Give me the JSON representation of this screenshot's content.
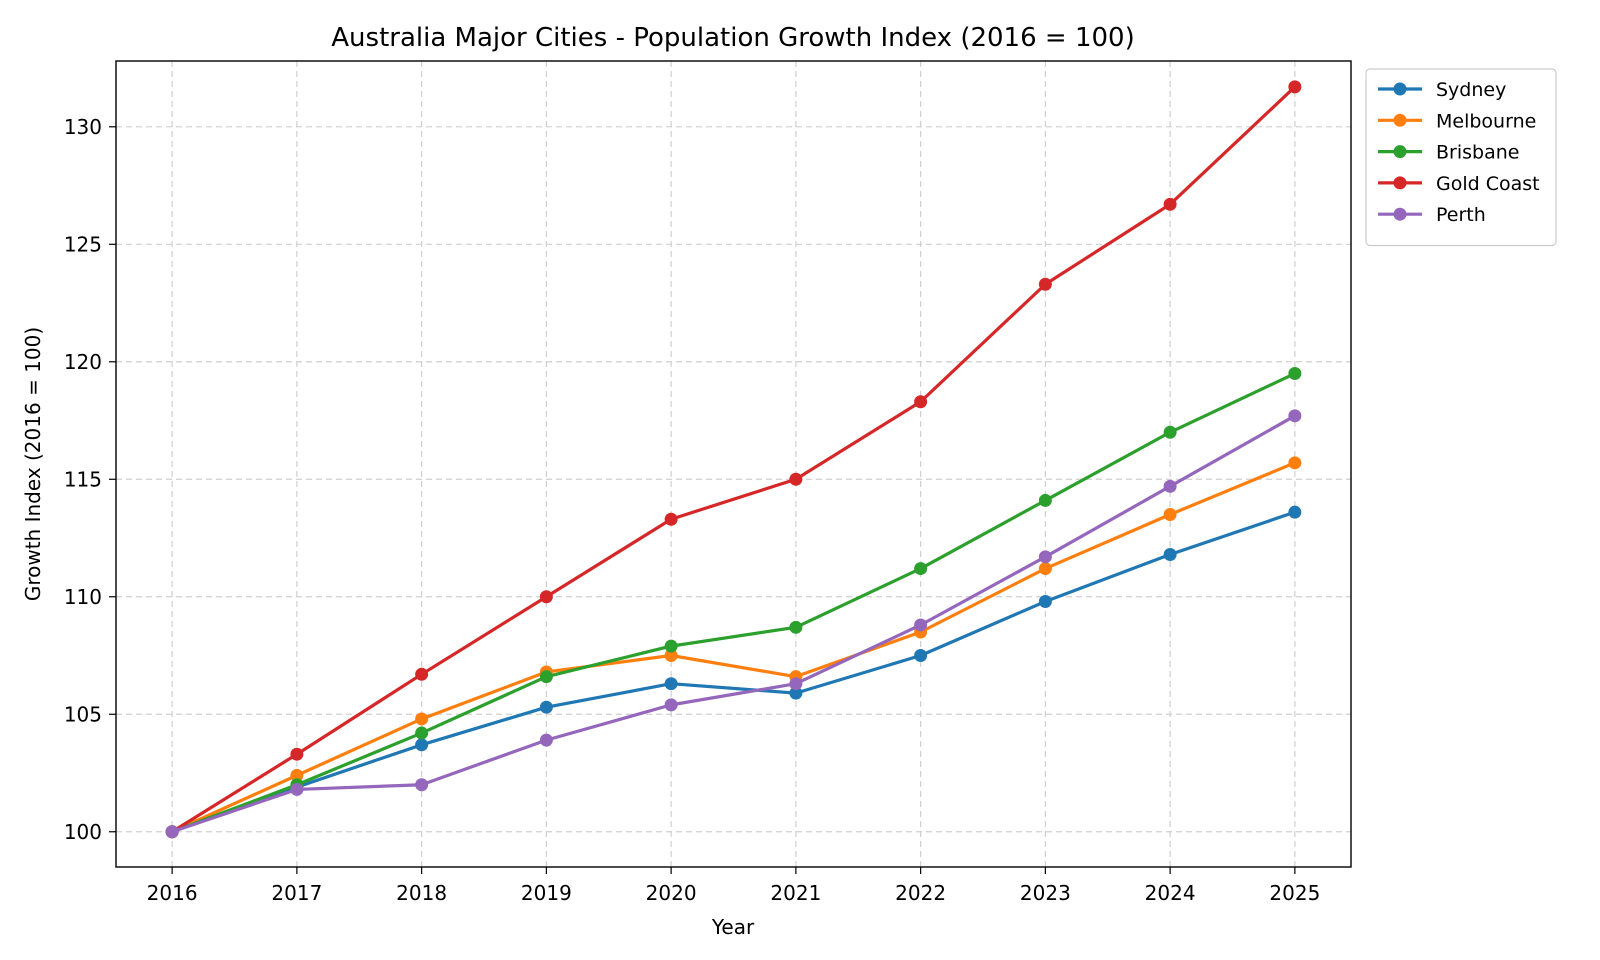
{
  "chart_data": {
    "type": "line",
    "title": "Australia Major Cities - Population Growth Index (2016 = 100)",
    "xlabel": "Year",
    "ylabel": "Growth Index (2016 = 100)",
    "x": [
      2016,
      2017,
      2018,
      2019,
      2020,
      2021,
      2022,
      2023,
      2024,
      2025
    ],
    "xlim": [
      2015.55,
      2025.45
    ],
    "ylim": [
      98.5,
      132.8
    ],
    "yticks": [
      100,
      105,
      110,
      115,
      120,
      125,
      130
    ],
    "grid": true,
    "legend_position": "outside-top-right",
    "series": [
      {
        "name": "Sydney",
        "color": "#1f77b4",
        "values": [
          100,
          101.9,
          103.7,
          105.3,
          106.3,
          105.9,
          107.5,
          109.8,
          111.8,
          113.6
        ]
      },
      {
        "name": "Melbourne",
        "color": "#ff7f0e",
        "values": [
          100,
          102.4,
          104.8,
          106.8,
          107.5,
          106.6,
          108.5,
          111.2,
          113.5,
          115.7
        ]
      },
      {
        "name": "Brisbane",
        "color": "#2ca02c",
        "values": [
          100,
          102.0,
          104.2,
          106.6,
          107.9,
          108.7,
          111.2,
          114.1,
          117.0,
          119.5
        ]
      },
      {
        "name": "Gold Coast",
        "color": "#d62728",
        "values": [
          100,
          103.3,
          106.7,
          110.0,
          113.3,
          115.0,
          118.3,
          123.3,
          126.7,
          131.7
        ]
      },
      {
        "name": "Perth",
        "color": "#9467bd",
        "values": [
          100,
          101.8,
          102.0,
          103.9,
          105.4,
          106.3,
          108.8,
          111.7,
          114.7,
          117.7
        ]
      }
    ]
  }
}
